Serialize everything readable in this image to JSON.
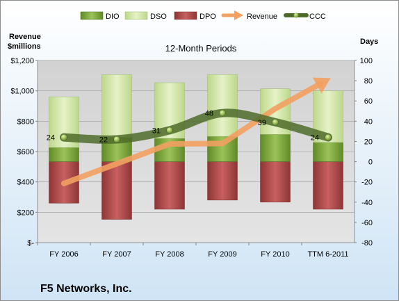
{
  "chart_data": {
    "type": "bar",
    "company": "F5 Networks, Inc.",
    "subtitle": "12-Month Periods",
    "left_axis_title": [
      "Revenue",
      "$millions"
    ],
    "right_axis_title": "Days",
    "categories": [
      "FY 2006",
      "FY 2007",
      "FY 2008",
      "FY 2009",
      "FY 2010",
      "TTM 6-2011"
    ],
    "left_axis": {
      "min": 0,
      "max": 1200,
      "ticks": [
        0,
        200,
        400,
        600,
        800,
        1000,
        1200
      ],
      "tick_labels": [
        "$-",
        "$200",
        "$400",
        "$600",
        "$800",
        "$1,000",
        "$1,200"
      ]
    },
    "right_axis": {
      "min": -80,
      "max": 100,
      "ticks": [
        -80,
        -60,
        -40,
        -20,
        0,
        20,
        40,
        60,
        80,
        100
      ],
      "tick_labels": [
        "-80",
        "-60",
        "-40",
        "-20",
        "0",
        "20",
        "40",
        "60",
        "80",
        "100"
      ]
    },
    "legend": [
      "DIO",
      "DSO",
      "DPO",
      "Revenue",
      "CCC"
    ],
    "legend_position": "top",
    "grid": true,
    "series": [
      {
        "name": "DIO",
        "axis": "right",
        "kind": "stacked-bar",
        "values": [
          14,
          24,
          23,
          25,
          27,
          19
        ]
      },
      {
        "name": "DSO",
        "axis": "right",
        "kind": "stacked-bar",
        "values": [
          50,
          62,
          55,
          61,
          45,
          51
        ]
      },
      {
        "name": "DPO",
        "axis": "right",
        "kind": "negative-bar",
        "values": [
          -41,
          -57,
          -47,
          -38,
          -40,
          -47
        ]
      },
      {
        "name": "Revenue",
        "axis": "left",
        "kind": "arrow-line",
        "values": [
          390,
          520,
          650,
          653,
          882,
          1075
        ]
      },
      {
        "name": "CCC",
        "axis": "right",
        "kind": "line",
        "values": [
          24,
          22,
          31,
          48,
          39,
          24
        ]
      }
    ],
    "ccc_labels": [
      "24",
      "22",
      "31",
      "48",
      "39",
      "24"
    ],
    "colors": {
      "DIO": "#7fa33a",
      "DSO": "#d4e6a6",
      "DPO": "#b34a4a",
      "Revenue": "#f2a061",
      "CCC": "#4f6b2a",
      "plot_bg": "#d9d9d9"
    }
  }
}
